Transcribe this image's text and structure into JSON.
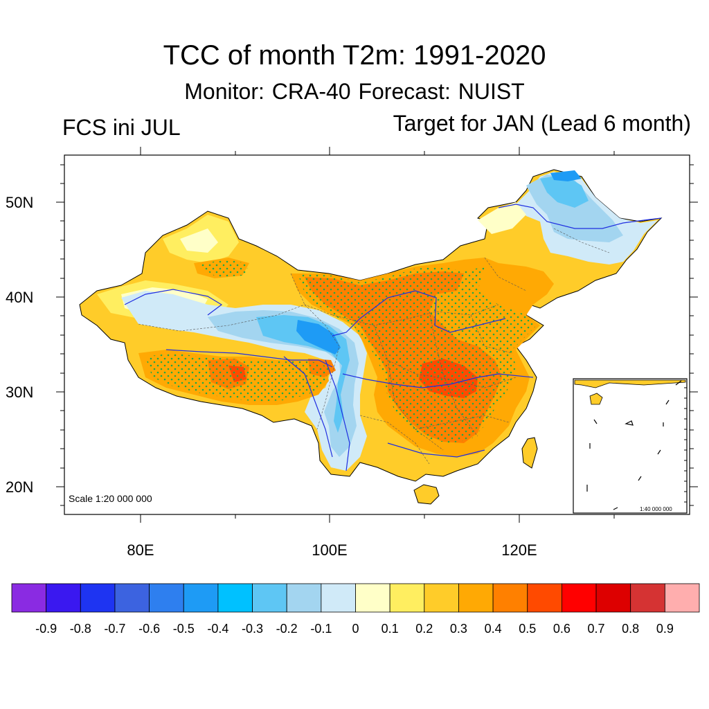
{
  "header": {
    "title": "TCC of month T2m: 1991-2020",
    "subtitle": "Monitor: CRA-40   Forecast: NUIST",
    "left_label": "FCS ini JUL",
    "right_label": "Target for JAN (Lead 6 month)"
  },
  "map": {
    "lat_labels": [
      "50N",
      "40N",
      "30N",
      "20N"
    ],
    "lon_labels": [
      "80E",
      "100E",
      "120E"
    ],
    "scale_text": "Scale 1:20 000 000",
    "inset_scale_text": "1:40 000 000"
  },
  "colorbar": {
    "colors": [
      "#8a2be2",
      "#3a18f0",
      "#1e34f2",
      "#3c63e0",
      "#2e7fef",
      "#1e9bf5",
      "#00c1ff",
      "#5ec6f4",
      "#a3d5f0",
      "#d0eaf8",
      "#ffffc8",
      "#ffee60",
      "#ffcc29",
      "#ffa904",
      "#ff8000",
      "#ff4a00",
      "#ff0000",
      "#dd0000",
      "#d53333",
      "#ffaeae"
    ],
    "labels": [
      "-0.9",
      "-0.8",
      "-0.7",
      "-0.6",
      "-0.5",
      "-0.4",
      "-0.3",
      "-0.2",
      "-0.1",
      "0",
      "0.1",
      "0.2",
      "0.3",
      "0.4",
      "0.5",
      "0.6",
      "0.7",
      "0.8",
      "0.9"
    ]
  },
  "colors": {
    "river": "#1f2ee0",
    "stipple": "#22a844",
    "border": "#000000"
  }
}
